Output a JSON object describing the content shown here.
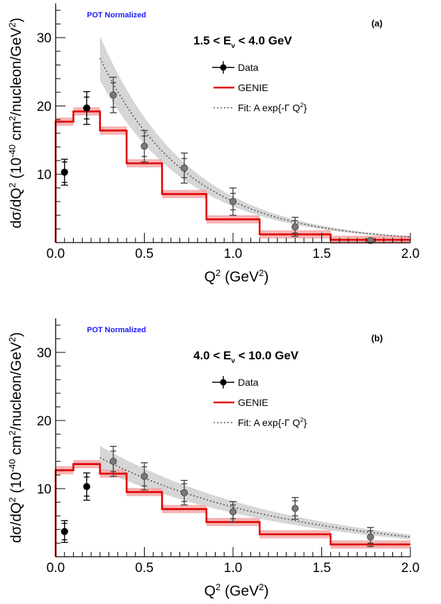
{
  "chart_data": [
    {
      "type": "line",
      "panel_label": "(a)",
      "normalization_note": "POT Normalized",
      "energy_range": {
        "low": "1.5",
        "high": "4.0",
        "symbol": "E",
        "subscript": "ν",
        "unit": "GeV"
      },
      "xlabel": "Q² (GeV²)",
      "ylabel": "dσ/dQ² (10⁻⁴⁰ cm²/nucleon/GeV²)",
      "xlim": [
        0,
        2.0
      ],
      "ylim": [
        0,
        35
      ],
      "xticks": [
        "0.0",
        "0.5",
        "1.0",
        "1.5",
        "2.0"
      ],
      "yticks": [
        "10",
        "20",
        "30"
      ],
      "legend": [
        {
          "label": "Data",
          "style": "marker-errorbar"
        },
        {
          "label": "GENIE",
          "style": "red-line"
        },
        {
          "label": "Fit: A exp{-Γ Q²}",
          "style": "dotted"
        }
      ],
      "series": [
        {
          "name": "Data",
          "x": [
            0.05,
            0.175,
            0.325,
            0.5,
            0.725,
            1.0,
            1.35,
            1.775
          ],
          "y": [
            10.3,
            19.7,
            21.6,
            14.1,
            10.9,
            6.0,
            2.3,
            0.3
          ],
          "err_inner": [
            1.5,
            1.6,
            1.8,
            1.5,
            1.4,
            1.2,
            0.9,
            0.15
          ],
          "err_outer": [
            1.9,
            2.4,
            2.6,
            2.3,
            2.2,
            2.0,
            1.4,
            0.25
          ],
          "fit_region": [
            false,
            false,
            true,
            true,
            true,
            true,
            true,
            true
          ]
        },
        {
          "name": "GENIE",
          "edges": [
            0.0,
            0.1,
            0.25,
            0.4,
            0.6,
            0.85,
            1.15,
            1.55,
            2.0
          ],
          "values": [
            17.7,
            19.2,
            16.4,
            11.6,
            7.1,
            3.4,
            1.2,
            0.4
          ],
          "band": 0.6
        },
        {
          "name": "Fit: A exp{-Γ Q²}",
          "model": "exp",
          "A": 44.5,
          "Gamma": 2.0,
          "x_range": [
            0.25,
            2.0
          ],
          "band_rel": 0.12
        }
      ]
    },
    {
      "type": "line",
      "panel_label": "(b)",
      "normalization_note": "POT Normalized",
      "energy_range": {
        "low": "4.0",
        "high": "10.0",
        "symbol": "E",
        "subscript": "ν",
        "unit": "GeV"
      },
      "xlabel": "Q² (GeV²)",
      "ylabel": "dσ/dQ² (10⁻⁴⁰ cm²/nucleon/GeV²)",
      "xlim": [
        0,
        2.0
      ],
      "ylim": [
        0,
        35
      ],
      "xticks": [
        "0.0",
        "0.5",
        "1.0",
        "1.5",
        "2.0"
      ],
      "yticks": [
        "10",
        "20",
        "30"
      ],
      "legend": [
        {
          "label": "Data",
          "style": "marker-errorbar"
        },
        {
          "label": "GENIE",
          "style": "red-line"
        },
        {
          "label": "Fit: A exp{-Γ Q²}",
          "style": "dotted"
        }
      ],
      "series": [
        {
          "name": "Data",
          "x": [
            0.05,
            0.175,
            0.325,
            0.5,
            0.725,
            1.0,
            1.35,
            1.775
          ],
          "y": [
            3.7,
            10.3,
            14.0,
            11.8,
            9.4,
            6.6,
            7.1,
            2.9
          ],
          "err_inner": [
            1.2,
            1.4,
            1.5,
            1.4,
            1.3,
            1.0,
            1.1,
            0.9
          ],
          "err_outer": [
            1.6,
            2.0,
            2.2,
            2.0,
            1.8,
            1.5,
            1.6,
            1.4
          ],
          "fit_region": [
            false,
            false,
            true,
            true,
            true,
            true,
            true,
            true
          ]
        },
        {
          "name": "GENIE",
          "edges": [
            0.0,
            0.1,
            0.25,
            0.4,
            0.6,
            0.85,
            1.15,
            1.55,
            2.0
          ],
          "values": [
            12.7,
            13.6,
            12.2,
            9.5,
            7.0,
            5.1,
            3.3,
            1.8
          ],
          "band": 0.6
        },
        {
          "name": "Fit: A exp{-Γ Q²}",
          "model": "exp",
          "A": 18.3,
          "Gamma": 0.92,
          "x_range": [
            0.25,
            2.0
          ],
          "band_rel": 0.12
        }
      ]
    }
  ]
}
